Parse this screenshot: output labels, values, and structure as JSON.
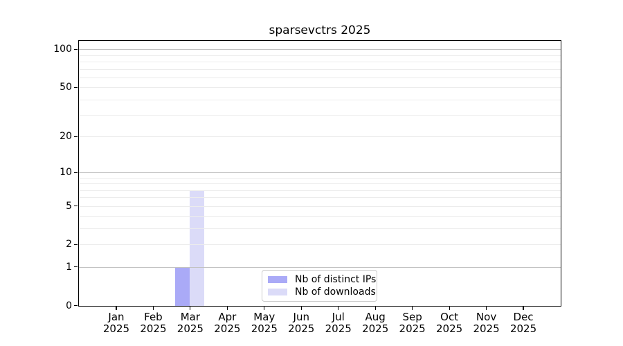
{
  "chart_data": {
    "type": "bar",
    "title": "sparsevctrs 2025",
    "categories": [
      "Jan 2025",
      "Feb 2025",
      "Mar 2025",
      "Apr 2025",
      "May 2025",
      "Jun 2025",
      "Jul 2025",
      "Aug 2025",
      "Sep 2025",
      "Oct 2025",
      "Nov 2025",
      "Dec 2025"
    ],
    "series": [
      {
        "name": "Nb of distinct IPs",
        "color": "#aaaaf7",
        "values": [
          0,
          0,
          1,
          0,
          0,
          0,
          0,
          0,
          0,
          0,
          0,
          0
        ]
      },
      {
        "name": "Nb of downloads",
        "color": "#dbdbf8",
        "values": [
          0,
          0,
          7,
          0,
          0,
          0,
          0,
          0,
          0,
          0,
          0,
          0
        ]
      }
    ],
    "xlabel": "",
    "ylabel": "",
    "y_scale": "log1p",
    "ylim": [
      0,
      116
    ],
    "y_ticks": [
      0,
      1,
      2,
      5,
      10,
      20,
      50,
      100
    ],
    "y_major_gridlines": [
      1,
      10,
      100
    ],
    "y_minor_gridlines": [
      2,
      3,
      4,
      5,
      6,
      7,
      8,
      9,
      20,
      30,
      40,
      50,
      60,
      70,
      80,
      90
    ],
    "grid": true,
    "legend_position": "lower center"
  }
}
